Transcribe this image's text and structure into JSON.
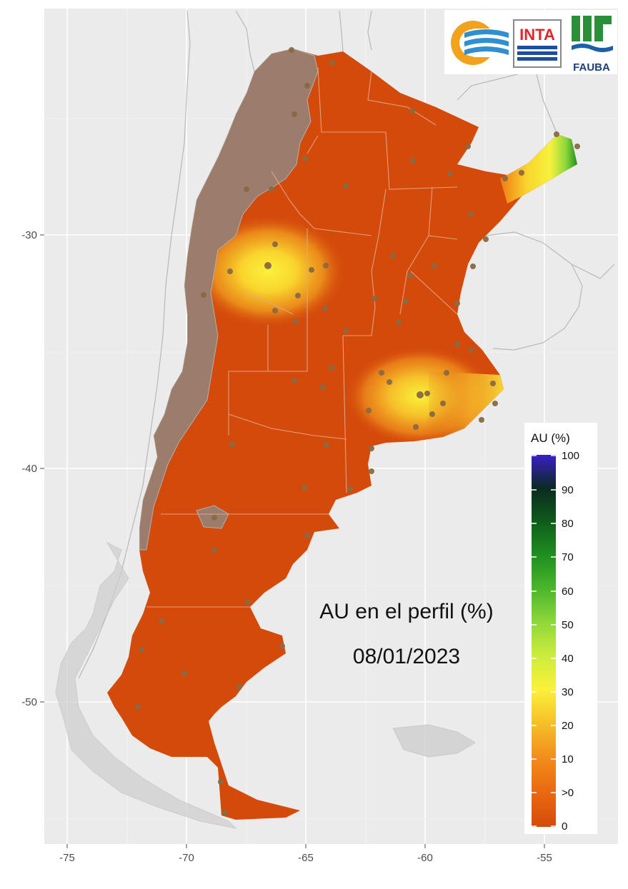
{
  "map": {
    "title": "AU en el perfil (%)",
    "date": "08/01/2023",
    "x_axis": {
      "ticks": [
        "-75",
        "-70",
        "-65",
        "-60",
        "-55"
      ]
    },
    "y_axis": {
      "ticks": [
        "-30",
        "-40",
        "-50"
      ]
    },
    "legend": {
      "title": "AU (%)",
      "labels": [
        "100",
        "90",
        "80",
        "70",
        "60",
        "50",
        "40",
        "30",
        "20",
        "10",
        ">0",
        "0"
      ]
    },
    "logos": {
      "inta": "INTA",
      "fauba": "FAUBA"
    },
    "colors": {
      "panel_bg": "#ebebeb",
      "grid": "#ffffff",
      "dry": "#d44a0b",
      "mountain": "#9c7d6c",
      "neighbor_border": "#b8b8b8",
      "province_border": "#e2a98c",
      "station": "#8a6a44"
    },
    "chart_data": {
      "type": "heatmap",
      "title": "AU en el perfil (%)",
      "subtitle": "08/01/2023",
      "xlim": [
        -77,
        -52
      ],
      "ylim": [
        -56,
        -21
      ],
      "x_ticks": [
        -75,
        -70,
        -65,
        -60,
        -55
      ],
      "y_ticks": [
        -30,
        -40,
        -50
      ],
      "color_scale": {
        "label": "AU (%)",
        "stops": [
          {
            "value": 0,
            "color": "#d44a0b"
          },
          {
            "value": 10,
            "color": "#f28a1a"
          },
          {
            "value": 20,
            "color": "#f6c02a"
          },
          {
            "value": 30,
            "color": "#fbf13a"
          },
          {
            "value": 40,
            "color": "#cdec3c"
          },
          {
            "value": 50,
            "color": "#8fd83a"
          },
          {
            "value": 60,
            "color": "#4cb62c"
          },
          {
            "value": 70,
            "color": "#1f8f20"
          },
          {
            "value": 80,
            "color": "#0f5c1a"
          },
          {
            "value": 90,
            "color": "#0b2a1f"
          },
          {
            "value": 100,
            "color": "#3a1ec8"
          }
        ]
      },
      "wet_areas": [
        {
          "lon": -66.5,
          "lat": -31.4,
          "peak_value": 35
        },
        {
          "lon": -60.3,
          "lat": -36.9,
          "peak_value": 32
        },
        {
          "lon": -54.0,
          "lat": -26.2,
          "peak_value": 65
        }
      ]
    }
  }
}
